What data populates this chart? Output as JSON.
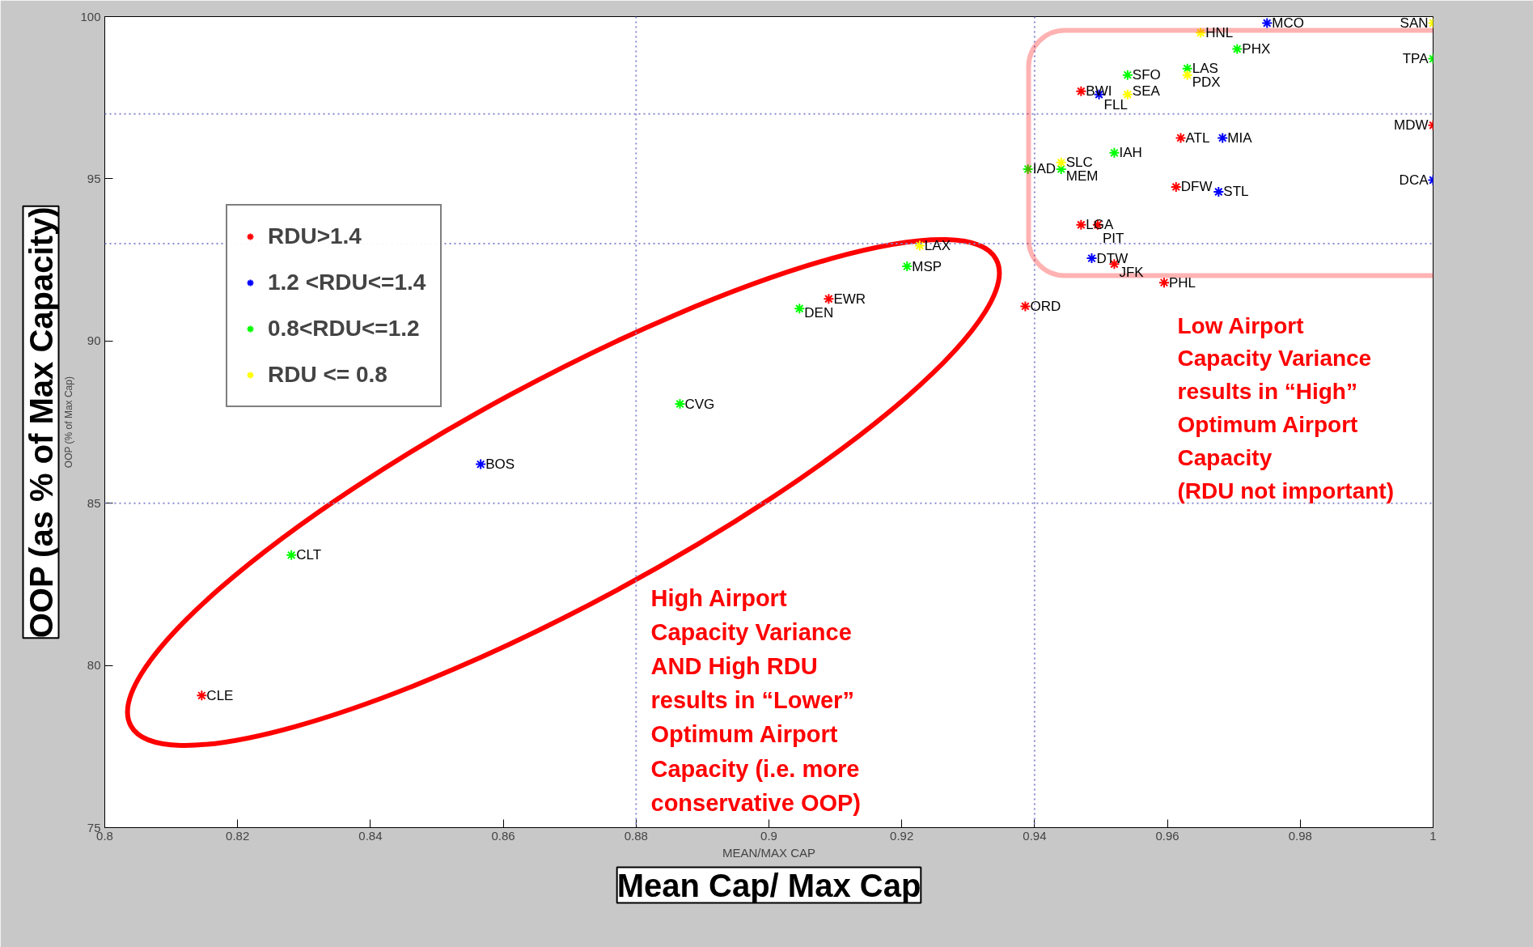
{
  "chart_data": {
    "type": "scatter",
    "xlabel": "Mean Cap/ Max Cap",
    "ylabel": "OOP (as % of Max Capacity)",
    "xlim": [
      0.8,
      1.0
    ],
    "ylim": [
      75,
      100
    ],
    "xticks": [
      0.8,
      0.82,
      0.84,
      0.86,
      0.88,
      0.9,
      0.92,
      0.94,
      0.96,
      0.98,
      1
    ],
    "yticks": [
      75,
      80,
      85,
      90,
      95,
      100
    ],
    "grid": false,
    "legend": "top left",
    "marker": "cross",
    "series": [
      {
        "name": "RDU>1.4",
        "color": "#ff0000",
        "x": [
          0.947,
          0.962,
          0.9613,
          0.947,
          0.9495,
          0.952,
          0.9595,
          0.9386,
          0.909,
          0.8146,
          1.0
        ],
        "values": [
          97.7,
          96.26,
          94.75,
          93.58,
          93.58,
          92.37,
          91.8,
          91.07,
          91.3,
          79.07,
          96.65
        ]
      },
      {
        "name": "1.2 <RDU<=1.4",
        "color": "#0000ff",
        "x": [
          0.975,
          0.9497,
          0.9683,
          1.0,
          0.9677,
          0.9486,
          0.8566
        ],
        "values": [
          99.8,
          97.6,
          96.26,
          94.96,
          94.6,
          92.55,
          86.2
        ]
      },
      {
        "name": "0.8<RDU<=1.2",
        "color": "#00ff00",
        "x": [
          0.9705,
          1.0,
          0.963,
          0.954,
          0.952,
          0.939,
          0.944,
          0.9208,
          0.9046,
          0.8866,
          0.8281
        ],
        "values": [
          99.0,
          98.7,
          98.4,
          98.2,
          95.8,
          95.3,
          95.3,
          92.3,
          91.0,
          88.06,
          83.4
        ]
      },
      {
        "name": "RDU <= 0.8",
        "color": "#ffff00",
        "x": [
          1.0,
          0.965,
          0.963,
          0.954,
          0.944,
          0.9227
        ],
        "values": [
          99.8,
          99.5,
          98.2,
          97.6,
          95.5,
          92.94
        ]
      }
    ],
    "ref_lines": [
      {
        "axis": "x",
        "value": 0.88,
        "color": "#8a8ad0",
        "line_style": "dotted"
      },
      {
        "axis": "x",
        "value": 0.94,
        "color": "#8a8ad0",
        "line_style": "dotted"
      },
      {
        "axis": "y",
        "value": 97,
        "color": "#8a8ad0",
        "line_style": "dotted"
      },
      {
        "axis": "y",
        "value": 93,
        "color": "#8a8ad0",
        "line_style": "dotted"
      },
      {
        "axis": "y",
        "value": 85,
        "color": "#8a8ad0",
        "line_style": "dotted"
      }
    ],
    "annotations": [
      "MEAN/MAX CAP",
      "OOP (% of Max Cap)",
      "High Airport\nCapacity Variance\nAND High RDU\nresults in “Lower”\nOptimum Airport\nCapacity (i.e. more\nconservative OOP)",
      "Low Airport\nCapacity Variance\nresults in “High”\nOptimum Airport\nCapacity\n(RDU not important)",
      {
        "text": "SAN",
        "x": 1.0,
        "y": 99.8
      },
      {
        "text": "MCO",
        "x": 0.975,
        "y": 99.8
      },
      {
        "text": "HNL",
        "x": 0.965,
        "y": 99.5
      },
      {
        "text": "PHX",
        "x": 0.9705,
        "y": 99.0
      },
      {
        "text": "TPA",
        "x": 1.0,
        "y": 98.7
      },
      {
        "text": "LAS",
        "x": 0.963,
        "y": 98.4
      },
      {
        "text": "PDX",
        "x": 0.963,
        "y": 98.2
      },
      {
        "text": "SFO",
        "x": 0.954,
        "y": 98.2
      },
      {
        "text": "BWI",
        "x": 0.947,
        "y": 97.7
      },
      {
        "text": "FLL",
        "x": 0.9497,
        "y": 97.6
      },
      {
        "text": "SEA",
        "x": 0.954,
        "y": 97.6
      },
      {
        "text": "MDW",
        "x": 1.0,
        "y": 96.65
      },
      {
        "text": "ATL",
        "x": 0.962,
        "y": 96.26
      },
      {
        "text": "MIA",
        "x": 0.9683,
        "y": 96.26
      },
      {
        "text": "IAH",
        "x": 0.952,
        "y": 95.8
      },
      {
        "text": "SLC",
        "x": 0.944,
        "y": 95.5
      },
      {
        "text": "IAD",
        "x": 0.939,
        "y": 95.3
      },
      {
        "text": "MEM",
        "x": 0.944,
        "y": 95.3
      },
      {
        "text": "DCA",
        "x": 1.0,
        "y": 94.96
      },
      {
        "text": "DFW",
        "x": 0.9613,
        "y": 94.75
      },
      {
        "text": "STL",
        "x": 0.9677,
        "y": 94.6
      },
      {
        "text": "LGA",
        "x": 0.947,
        "y": 93.58
      },
      {
        "text": "PIT",
        "x": 0.9495,
        "y": 93.58
      },
      {
        "text": "DTW",
        "x": 0.9486,
        "y": 92.55
      },
      {
        "text": "JFK",
        "x": 0.952,
        "y": 92.37
      },
      {
        "text": "PHL",
        "x": 0.9595,
        "y": 91.8
      },
      {
        "text": "ORD",
        "x": 0.9386,
        "y": 91.07
      },
      {
        "text": "LAX",
        "x": 0.9227,
        "y": 92.94
      },
      {
        "text": "MSP",
        "x": 0.9208,
        "y": 92.3
      },
      {
        "text": "EWR",
        "x": 0.909,
        "y": 91.3
      },
      {
        "text": "DEN",
        "x": 0.9046,
        "y": 91.0
      },
      {
        "text": "CVG",
        "x": 0.8866,
        "y": 88.06
      },
      {
        "text": "BOS",
        "x": 0.8566,
        "y": 86.2
      },
      {
        "text": "CLT",
        "x": 0.8281,
        "y": 83.4
      },
      {
        "text": "CLE",
        "x": 0.8146,
        "y": 79.07
      }
    ]
  }
}
